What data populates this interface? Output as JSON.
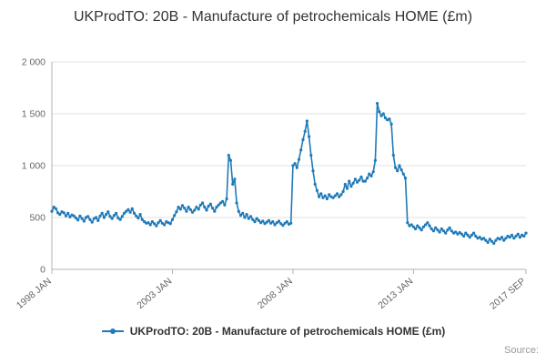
{
  "title": "UKProdTO: 20B - Manufacture of petrochemicals HOME (£m)",
  "legend": {
    "label": "UKProdTO: 20B - Manufacture of petrochemicals HOME (£m)"
  },
  "source_label": "Source:",
  "colors": {
    "line": "#1f7ab8",
    "grid": "#e0e0e0",
    "axis": "#b3b3b3",
    "tick_text": "#666666",
    "title_text": "#333333",
    "source_text": "#999999"
  },
  "chart_data": {
    "type": "line",
    "title": "UKProdTO: 20B - Manufacture of petrochemicals HOME (£m)",
    "xlabel": "",
    "ylabel": "",
    "x_start": "1998-01",
    "x_end": "2017-09",
    "frequency": "monthly",
    "ylim": [
      0,
      2000
    ],
    "grid": true,
    "legend_position": "bottom",
    "yticks": [
      0,
      500,
      1000,
      1500,
      2000
    ],
    "ytick_labels": [
      "0",
      "500",
      "1 000",
      "1 500",
      "2 000"
    ],
    "xtick_labels": [
      "1998 JAN",
      "2003 JAN",
      "2008 JAN",
      "2013 JAN",
      "2017 SEP"
    ],
    "xtick_indices": [
      0,
      60,
      120,
      180,
      236
    ],
    "series": [
      {
        "name": "UKProdTO: 20B - Manufacture of petrochemicals HOME (£m)",
        "values": [
          560,
          600,
          585,
          545,
          530,
          555,
          545,
          515,
          540,
          505,
          525,
          515,
          495,
          475,
          515,
          490,
          465,
          500,
          510,
          480,
          455,
          490,
          500,
          470,
          515,
          540,
          500,
          530,
          555,
          510,
          490,
          520,
          540,
          495,
          480,
          510,
          540,
          560,
          575,
          550,
          585,
          540,
          515,
          495,
          530,
          480,
          460,
          445,
          450,
          430,
          460,
          440,
          420,
          450,
          470,
          445,
          430,
          460,
          450,
          440,
          480,
          520,
          555,
          600,
          580,
          615,
          590,
          560,
          600,
          575,
          550,
          570,
          600,
          580,
          620,
          640,
          600,
          570,
          610,
          630,
          590,
          560,
          600,
          620,
          640,
          655,
          620,
          680,
          1100,
          1050,
          820,
          870,
          640,
          560,
          520,
          540,
          500,
          530,
          490,
          510,
          480,
          460,
          490,
          470,
          450,
          465,
          440,
          455,
          470,
          445,
          460,
          430,
          450,
          465,
          440,
          425,
          445,
          460,
          435,
          445,
          1000,
          1020,
          980,
          1060,
          1150,
          1250,
          1330,
          1430,
          1280,
          1100,
          950,
          820,
          760,
          700,
          730,
          690,
          710,
          680,
          720,
          700,
          690,
          710,
          730,
          700,
          720,
          750,
          820,
          780,
          850,
          800,
          830,
          870,
          840,
          860,
          890,
          850,
          850,
          880,
          920,
          900,
          940,
          1050,
          1600,
          1520,
          1480,
          1500,
          1460,
          1440,
          1450,
          1400,
          1100,
          980,
          950,
          1000,
          960,
          920,
          880,
          450,
          420,
          430,
          410,
          390,
          420,
          400,
          380,
          410,
          430,
          450,
          420,
          390,
          370,
          400,
          380,
          360,
          390,
          370,
          350,
          380,
          400,
          370,
          350,
          360,
          340,
          355,
          340,
          320,
          350,
          330,
          310,
          330,
          350,
          320,
          300,
          310,
          290,
          300,
          280,
          260,
          290,
          270,
          250,
          280,
          300,
          290,
          310,
          280,
          300,
          320,
          310,
          330,
          300,
          320,
          340,
          310,
          330,
          320,
          350
        ]
      }
    ]
  }
}
